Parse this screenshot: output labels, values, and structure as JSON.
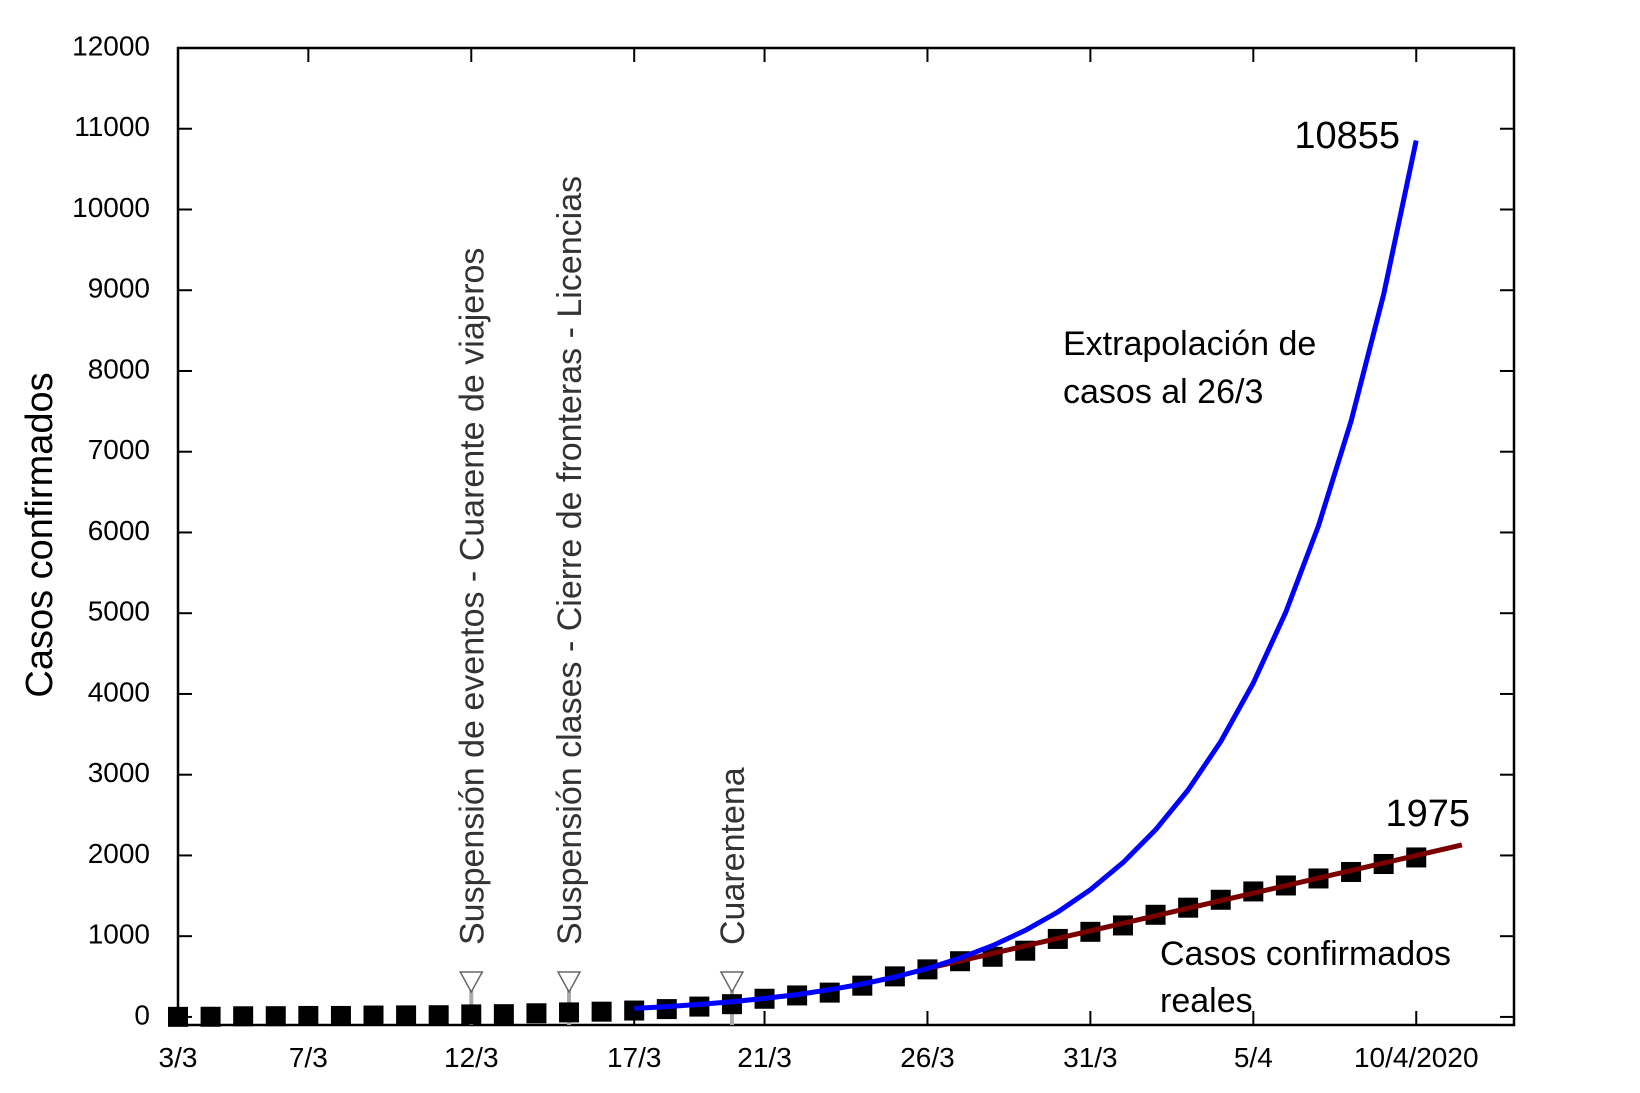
{
  "chart_data": {
    "type": "line",
    "ylabel": "Casos confirmados",
    "xlim": [
      0,
      41
    ],
    "xticks": [
      {
        "value": 0,
        "label": "3/3"
      },
      {
        "value": 4,
        "label": "7/3"
      },
      {
        "value": 9,
        "label": "12/3"
      },
      {
        "value": 14,
        "label": "17/3"
      },
      {
        "value": 18,
        "label": "21/3"
      },
      {
        "value": 23,
        "label": "26/3"
      },
      {
        "value": 28,
        "label": "31/3"
      },
      {
        "value": 33,
        "label": "5/4"
      },
      {
        "value": 38,
        "label": "10/4/2020"
      }
    ],
    "ylim": [
      -100,
      12000
    ],
    "yticks": [
      0,
      1000,
      2000,
      3000,
      4000,
      5000,
      6000,
      7000,
      8000,
      9000,
      10000,
      11000,
      12000
    ],
    "series": [
      {
        "marker": "square",
        "color": "#000000",
        "x": [
          0,
          1,
          2,
          3,
          4,
          5,
          6,
          7,
          8,
          9,
          10,
          11,
          12,
          13,
          14,
          15,
          16,
          17,
          18,
          19,
          20,
          21,
          22,
          23,
          24,
          25,
          26,
          27,
          28,
          29,
          30,
          31,
          32,
          33,
          34,
          35,
          36,
          37,
          38
        ],
        "values": [
          1,
          2,
          8,
          9,
          12,
          12,
          17,
          19,
          21,
          31,
          34,
          45,
          56,
          65,
          79,
          97,
          128,
          158,
          225,
          266,
          301,
          387,
          502,
          589,
          690,
          745,
          820,
          966,
          1054,
          1133,
          1265,
          1353,
          1451,
          1554,
          1628,
          1715,
          1795,
          1894,
          1975
        ]
      },
      {
        "color": "#0000ff",
        "x": [
          14,
          15,
          16,
          17,
          18,
          19,
          20,
          21,
          22,
          23,
          24,
          25,
          26,
          27,
          28,
          29,
          30,
          31,
          32,
          33,
          34,
          35,
          36,
          37,
          38
        ],
        "values": [
          106,
          128,
          155,
          189,
          229,
          277,
          337,
          408,
          495,
          600,
          728,
          883,
          1071,
          1299,
          1576,
          1911,
          2318,
          2811,
          3410,
          4136,
          5016,
          6084,
          7379,
          8950,
          10855
        ]
      },
      {
        "color": "#7a0000",
        "x": [
          23,
          39.4
        ],
        "values": [
          600,
          2130
        ]
      }
    ],
    "annotations": [
      {
        "text": "10855"
      },
      {
        "text": "1975"
      },
      {
        "lines": [
          "Extrapolación de",
          "casos al 26/3"
        ]
      },
      {
        "lines": [
          "Casos confirmados",
          "reales"
        ]
      }
    ],
    "events": [
      {
        "x": 9,
        "label": "Suspensión de eventos - Cuarente de viajeros"
      },
      {
        "x": 12,
        "label": "Suspensión clases - Cierre de fronteras - Licencias"
      },
      {
        "x": 17,
        "label": "Cuarentena"
      }
    ]
  }
}
